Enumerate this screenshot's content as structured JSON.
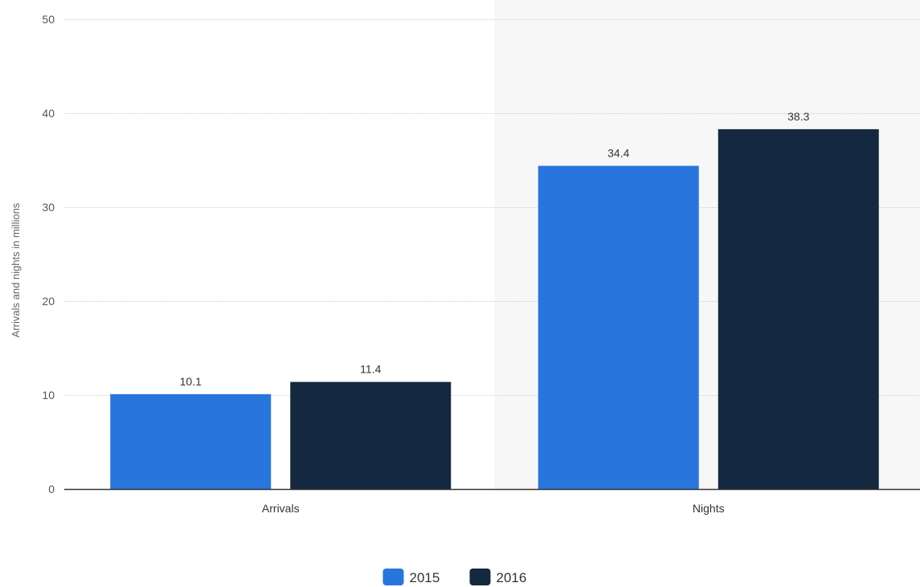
{
  "chart_data": {
    "type": "bar",
    "categories": [
      "Arrivals",
      "Nights"
    ],
    "series": [
      {
        "name": "2015",
        "values": [
          10.1,
          34.4
        ],
        "color": "#2876dd"
      },
      {
        "name": "2016",
        "values": [
          11.4,
          38.3
        ],
        "color": "#14283f"
      }
    ],
    "xlabel": "",
    "ylabel": "Arrivals and nights in millions",
    "ylim": [
      0,
      50
    ],
    "yticks": [
      0,
      10,
      20,
      30,
      40,
      50
    ],
    "ytick_labels": [
      "0",
      "10",
      "20",
      "30",
      "40",
      "50"
    ],
    "grid": true,
    "legend_position": "bottom-center",
    "highlight_color": "#f7f7f7",
    "axis_color": "#333333",
    "grid_color": "#cccccc"
  }
}
